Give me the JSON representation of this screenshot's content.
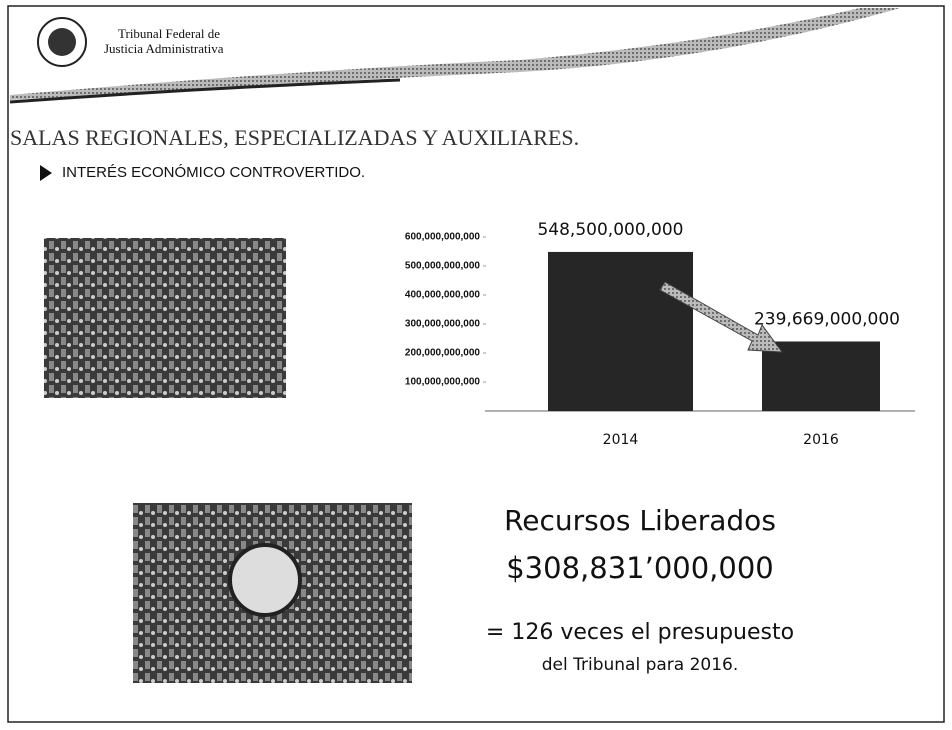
{
  "header": {
    "line1": "Tribunal Federal de",
    "line2": "Justicia Administrativa"
  },
  "heading": "SALAS REGIONALES, ESPECIALIZADAS Y AUXILIARES.",
  "bullet": "INTERÉS ECONÓMICO CONTROVERTIDO.",
  "chart_data": {
    "type": "bar",
    "categories": [
      "2014",
      "2016"
    ],
    "values": [
      548500000000,
      239669000000
    ],
    "value_labels": [
      "548,500,000,000",
      "239,669,000,000"
    ],
    "color": "#262626",
    "ylim": [
      0,
      600000000000
    ],
    "yticks": [
      {
        "value": 100000000000,
        "label": "100,000,000,000"
      },
      {
        "value": 200000000000,
        "label": "200,000,000,000"
      },
      {
        "value": 300000000000,
        "label": "300,000,000,000"
      },
      {
        "value": 400000000000,
        "label": "400,000,000,000"
      },
      {
        "value": 500000000000,
        "label": "500,000,000,000"
      },
      {
        "value": 600000000000,
        "label": "600,000,000,000"
      }
    ]
  },
  "summary": {
    "line1": "Recursos Liberados",
    "line2": "$308,831’000,000",
    "line3": "= 126 veces el presupuesto",
    "line4": "del Tribunal para 2016."
  }
}
